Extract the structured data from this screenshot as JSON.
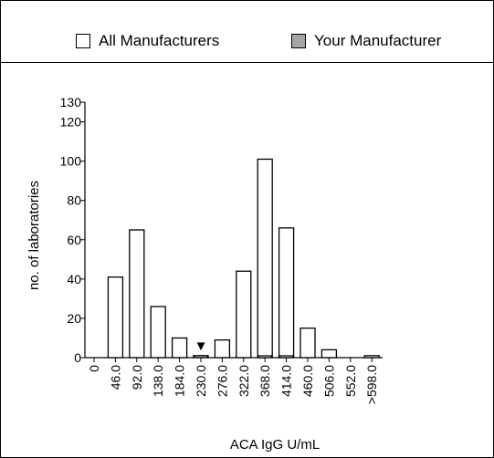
{
  "legend": {
    "items": [
      {
        "label": "All Manufacturers",
        "color": "#ffffff"
      },
      {
        "label": "Your Manufacturer",
        "color": "#a6a6a6"
      }
    ]
  },
  "chart_data": {
    "type": "bar",
    "xlabel": "ACA IgG U/mL",
    "ylabel": "no. of laboratories",
    "ylim": [
      0,
      130
    ],
    "yticks": [
      0,
      20,
      40,
      60,
      80,
      100,
      120,
      130
    ],
    "categories": [
      "0",
      "46.0",
      "92.0",
      "138.0",
      "184.0",
      "230.0",
      "276.0",
      "322.0",
      "368.0",
      "414.0",
      "460.0",
      "506.0",
      "552.0",
      ">598.0"
    ],
    "series": [
      {
        "name": "All Manufacturers",
        "color": "#ffffff",
        "values": [
          0,
          41,
          65,
          26,
          10,
          1,
          9,
          44,
          101,
          66,
          15,
          4,
          0,
          1
        ]
      },
      {
        "name": "Your Manufacturer",
        "color": "#a6a6a6",
        "values": [
          0,
          0,
          0,
          0,
          0,
          1,
          0,
          0,
          1,
          1,
          0,
          0,
          0,
          0
        ]
      }
    ],
    "marker": {
      "category": "230.0",
      "symbol": "▼"
    }
  }
}
